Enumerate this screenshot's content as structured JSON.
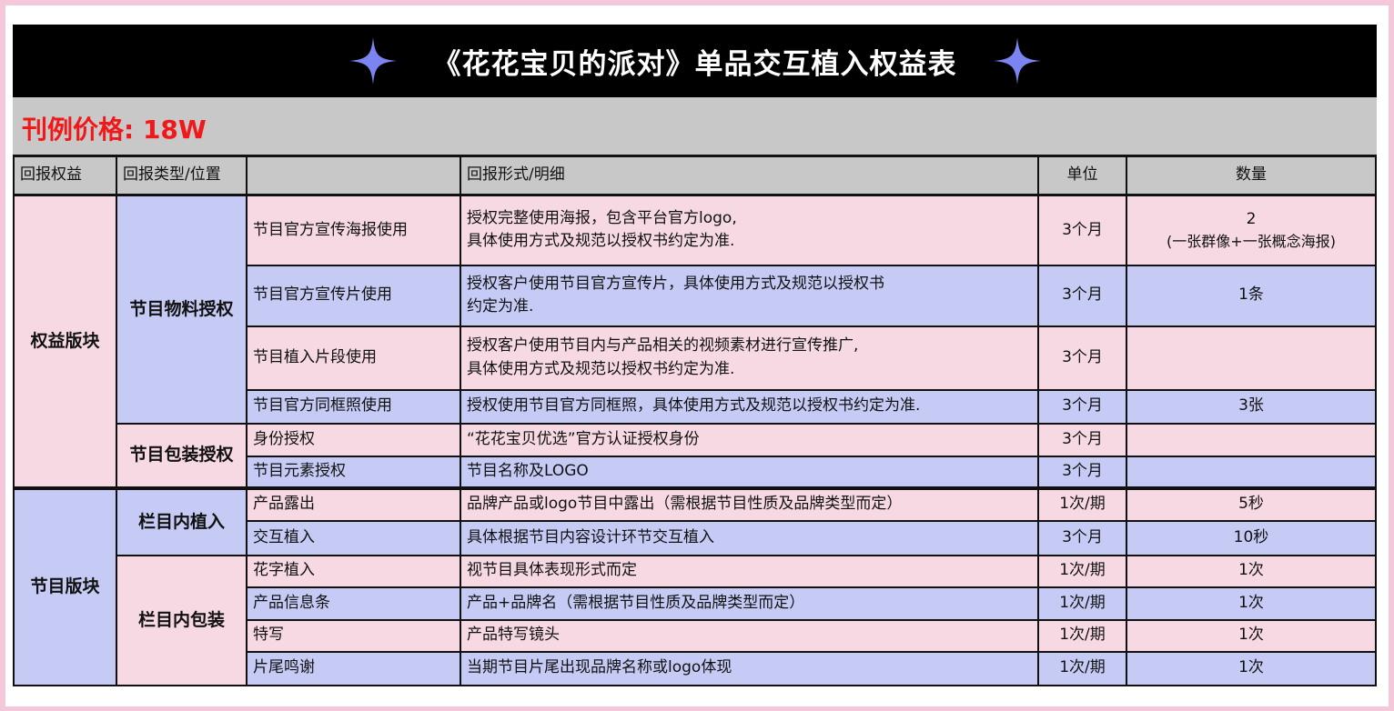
{
  "title": "《花花宝贝的派对》单品交互植入权益表",
  "price": "刊例价格: 18W",
  "colors": {
    "pink": "#f6d9e3",
    "blue": "#c5cbf5",
    "header": "#c8c8c8",
    "price": "#f01818",
    "star": "#7b84f0"
  },
  "headers": [
    "回报权益",
    "回报类型/位置",
    "",
    "回报形式/明细",
    "单位",
    "数量"
  ],
  "sections": [
    {
      "name": "权益版块",
      "color": "pink",
      "groups": [
        {
          "name": "节目物料授权",
          "color": "blue",
          "rows": [
            {
              "item": "节目官方宣传海报使用",
              "detail": [
                "授权完整使用海报，包含平台官方logo,",
                "具体使用方式及规范以授权书约定为准."
              ],
              "unit": "3个月",
              "qty": [
                "2",
                "(一张群像+一张概念海报)"
              ],
              "color": "pink"
            },
            {
              "item": "节目官方宣传片使用",
              "detail": [
                "授权客户使用节目官方宣传片，具体使用方式及规范以授权书",
                "约定为准."
              ],
              "unit": "3个月",
              "qty": [
                "1条"
              ],
              "color": "blue"
            },
            {
              "item": "节目植入片段使用",
              "detail": [
                "授权客户使用节目内与产品相关的视频素材进行宣传推广,",
                "具体使用方式及规范以授权书约定为准."
              ],
              "unit": "3个月",
              "qty": [
                ""
              ],
              "color": "pink"
            },
            {
              "item": "节目官方同框照使用",
              "detail": [
                "授权使用节目官方同框照，具体使用方式及规范以授权书约定为准."
              ],
              "unit": "3个月",
              "qty": [
                "3张"
              ],
              "color": "blue"
            }
          ]
        },
        {
          "name": "节目包装授权",
          "color": "pink",
          "rows": [
            {
              "item": "身份授权",
              "detail": [
                "“花花宝贝优选”官方认证授权身份"
              ],
              "unit": "3个月",
              "qty": [
                ""
              ],
              "color": "pink"
            },
            {
              "item": "节目元素授权",
              "detail": [
                "节目名称及LOGO"
              ],
              "unit": "3个月",
              "qty": [
                ""
              ],
              "color": "blue"
            }
          ]
        }
      ]
    },
    {
      "name": "节目版块",
      "color": "blue",
      "groups": [
        {
          "name": "栏目内植入",
          "color": "blue",
          "rows": [
            {
              "item": "产品露出",
              "detail": [
                "品牌产品或logo节目中露出（需根据节目性质及品牌类型而定）"
              ],
              "unit": "1次/期",
              "qty": [
                "5秒"
              ],
              "color": "pink"
            },
            {
              "item": "交互植入",
              "detail": [
                "具体根据节目内容设计环节交互植入"
              ],
              "unit": "3个月",
              "qty": [
                "10秒"
              ],
              "color": "blue"
            }
          ]
        },
        {
          "name": "栏目内包装",
          "color": "pink",
          "rows": [
            {
              "item": "花字植入",
              "detail": [
                "视节目具体表现形式而定"
              ],
              "unit": "1次/期",
              "qty": [
                "1次"
              ],
              "color": "pink"
            },
            {
              "item": "产品信息条",
              "detail": [
                "产品+品牌名（需根据节目性质及品牌类型而定）"
              ],
              "unit": "1次/期",
              "qty": [
                "1次"
              ],
              "color": "blue"
            },
            {
              "item": "特写",
              "detail": [
                "产品特写镜头"
              ],
              "unit": "1次/期",
              "qty": [
                "1次"
              ],
              "color": "pink"
            },
            {
              "item": "片尾鸣谢",
              "detail": [
                "当期节目片尾出现品牌名称或logo体现"
              ],
              "unit": "1次/期",
              "qty": [
                "1次"
              ],
              "color": "blue"
            }
          ]
        }
      ]
    }
  ]
}
